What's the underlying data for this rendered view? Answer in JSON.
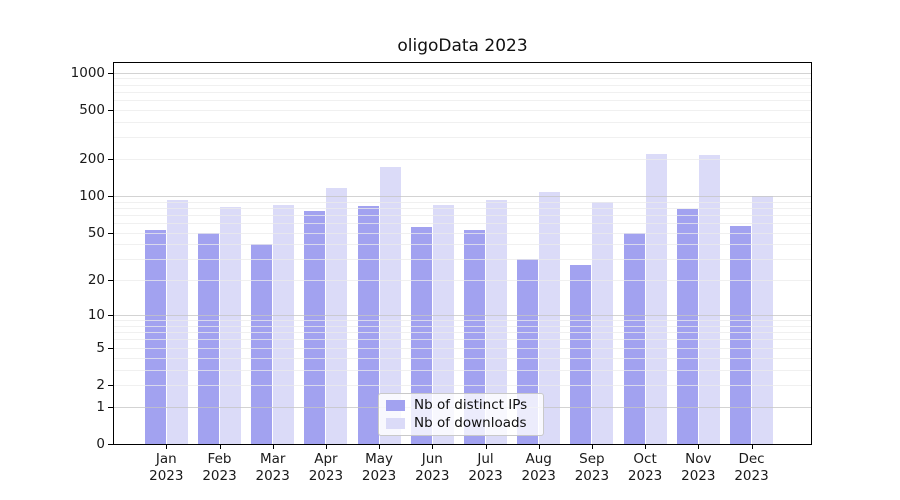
{
  "title": "oligoData 2023",
  "chart_data": {
    "type": "bar",
    "title": "oligoData 2023",
    "categories": [
      "Jan",
      "Feb",
      "Mar",
      "Apr",
      "May",
      "Jun",
      "Jul",
      "Aug",
      "Sep",
      "Oct",
      "Nov",
      "Dec"
    ],
    "category_year": "2023",
    "series": [
      {
        "name": "Nb of distinct IPs",
        "color": "#a2a2f0",
        "values": [
          53,
          50,
          40,
          75,
          83,
          56,
          53,
          30,
          27,
          50,
          78,
          57
        ]
      },
      {
        "name": "Nb of downloads",
        "color": "#dbdbf8",
        "values": [
          92,
          82,
          85,
          116,
          171,
          85,
          93,
          107,
          90,
          221,
          216,
          100
        ]
      }
    ],
    "xlabel": "",
    "ylabel": "",
    "yscale": "log1p",
    "ylim": [
      0,
      1200
    ],
    "yticks": [
      0,
      1,
      2,
      5,
      10,
      20,
      50,
      100,
      200,
      500,
      1000
    ],
    "grid": "horizontal, major and minor, drawn over bars",
    "grid_major_values": [
      1,
      10,
      100,
      1000
    ],
    "grid_minor_values": [
      2,
      3,
      4,
      5,
      6,
      7,
      8,
      9,
      20,
      30,
      40,
      50,
      60,
      70,
      80,
      90,
      200,
      300,
      400,
      500,
      600,
      700,
      800,
      900
    ],
    "legend_position": "lower center"
  },
  "colors": {
    "grid_major": "#c4c4c4",
    "grid_minor": "#ebebeb",
    "axis": "#000000",
    "text": "#1a1a1a",
    "legend_border": "#c9c9c9"
  }
}
